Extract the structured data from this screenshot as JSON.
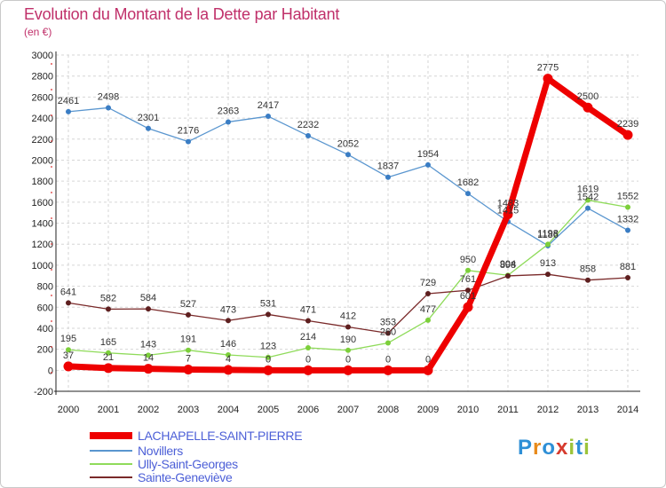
{
  "title": "Evolution du Montant de la Dette par Habitant",
  "subtitle": "(en €)",
  "logo": {
    "letters": [
      "P",
      "r",
      "o",
      "x",
      "i",
      "t",
      "i"
    ],
    "colors": [
      "#2e8fd6",
      "#e88a1a",
      "#2e8fd6",
      "#d63b2e",
      "#9cc43a",
      "#2e8fd6",
      "#9cc43a"
    ]
  },
  "chart_data": {
    "type": "line",
    "x": [
      "2000",
      "2001",
      "2002",
      "2003",
      "2004",
      "2005",
      "2006",
      "2007",
      "2008",
      "2009",
      "2010",
      "2011",
      "2012",
      "2013",
      "2014"
    ],
    "ylim": [
      -200,
      3000
    ],
    "yticks": [
      "-200",
      "0",
      "200",
      "400",
      "600",
      "800",
      "1000",
      "1200",
      "1400",
      "1600",
      "1800",
      "2000",
      "2200",
      "2400",
      "2600",
      "2800",
      "3000"
    ],
    "grid": true,
    "legend_position": "bottom-left",
    "series": [
      {
        "name": "LACHAPELLE-SAINT-PIERRE",
        "color": "#ee0000",
        "values": [
          37,
          21,
          14,
          7,
          4,
          0,
          0,
          0,
          0,
          0,
          601,
          1483,
          2775,
          2500,
          2239
        ],
        "labels": [
          "37",
          "21",
          "14",
          "7",
          "4",
          "0",
          "0",
          "0",
          "0",
          "0",
          "601",
          "1483",
          "2775",
          "2500",
          "2239"
        ]
      },
      {
        "name": "Novillers",
        "color": "#5a96cf",
        "values": [
          2461,
          2498,
          2301,
          2176,
          2363,
          2417,
          2232,
          2052,
          1837,
          1954,
          1682,
          1415,
          1186,
          1542,
          1332
        ],
        "labels": [
          "2461",
          "2498",
          "2301",
          "2176",
          "2363",
          "2417",
          "2232",
          "2052",
          "1837",
          "1954",
          "1682",
          "1415",
          "1186",
          "1542",
          "1332"
        ]
      },
      {
        "name": "Ully-Saint-Georges",
        "color": "#8fdb5a",
        "values": [
          195,
          165,
          143,
          191,
          146,
          123,
          214,
          190,
          260,
          477,
          950,
          904,
          1198,
          1619,
          1552
        ],
        "labels": [
          "195",
          "165",
          "143",
          "191",
          "146",
          "123",
          "214",
          "190",
          "260",
          "477",
          "950",
          "904",
          "1198",
          "1619",
          "1552"
        ]
      },
      {
        "name": "Sainte-Geneviève",
        "color": "#7a2a2a",
        "values": [
          641,
          582,
          584,
          527,
          473,
          531,
          471,
          412,
          353,
          729,
          761,
          898,
          913,
          858,
          881
        ],
        "labels": [
          "641",
          "582",
          "584",
          "527",
          "473",
          "531",
          "471",
          "412",
          "353",
          "729",
          "761",
          "898",
          "913",
          "858",
          "881"
        ]
      }
    ]
  }
}
